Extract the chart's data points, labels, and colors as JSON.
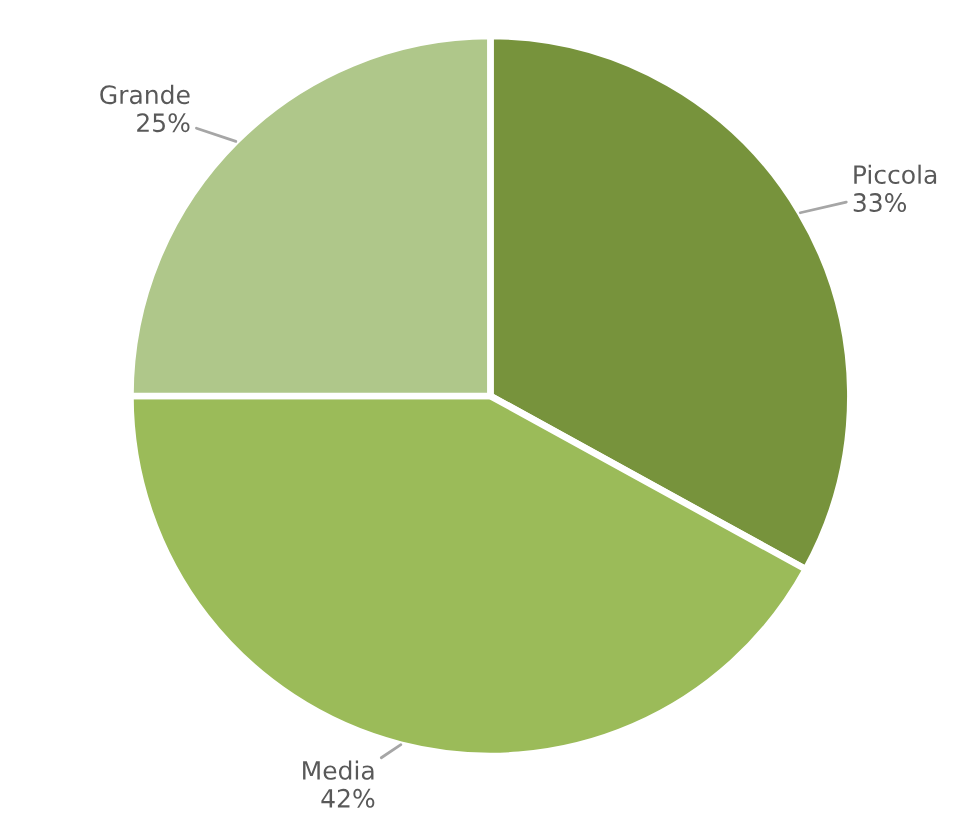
{
  "chart_data": {
    "type": "pie",
    "categories": [
      "Piccola",
      "Media",
      "Grande"
    ],
    "values": [
      33,
      42,
      25
    ],
    "value_labels": [
      "33%",
      "42%",
      "25%"
    ],
    "colors": [
      "#77933c",
      "#9bbb59",
      "#afc78a"
    ]
  }
}
